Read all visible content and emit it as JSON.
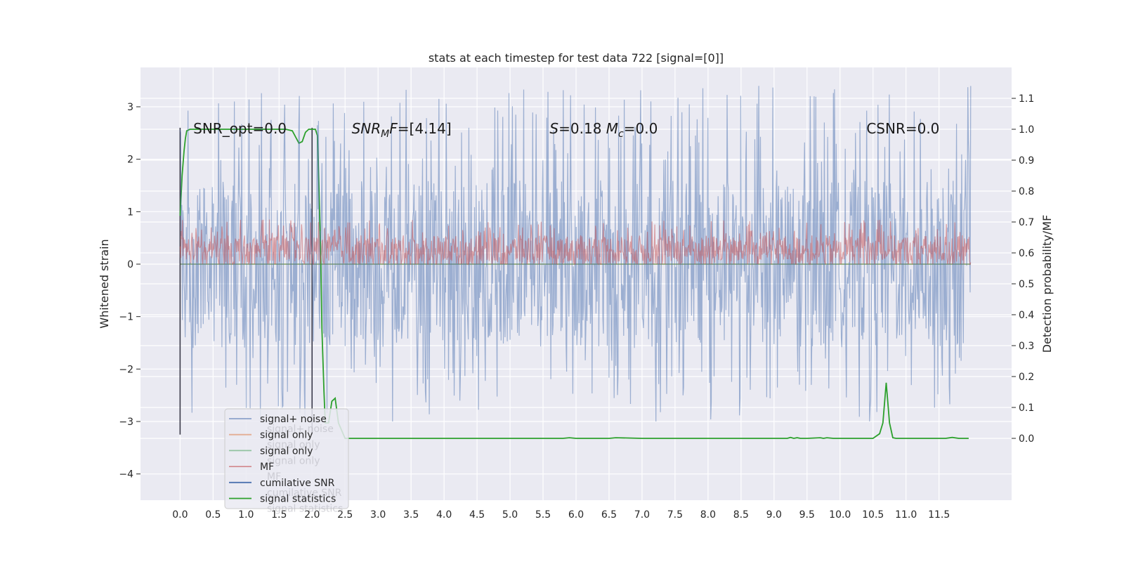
{
  "chart_data": {
    "type": "line",
    "title": "stats at each timestep for test data 722 [signal=[0]]",
    "xlabel": "",
    "ylabel": "Whitened strain",
    "y2label": "Detection probability/MF",
    "xlim": [
      -0.6,
      12.6
    ],
    "ylim": [
      -4.5,
      3.75
    ],
    "y2lim": [
      -0.2,
      1.2
    ],
    "xticks": [
      0.0,
      0.5,
      1.0,
      1.5,
      2.0,
      2.5,
      3.0,
      3.5,
      4.0,
      4.5,
      5.0,
      5.5,
      6.0,
      6.5,
      7.0,
      7.5,
      8.0,
      8.5,
      9.0,
      9.5,
      10.0,
      10.5,
      11.0,
      11.5
    ],
    "xtick_labels": [
      "0.0",
      "0.5",
      "1.0",
      "1.5",
      "2.0",
      "2.5",
      "3.0",
      "3.5",
      "4.0",
      "4.5",
      "5.0",
      "5.5",
      "6.0",
      "6.5",
      "7.0",
      "7.5",
      "8.0",
      "8.5",
      "9.0",
      "9.5",
      "10.0",
      "10.5",
      "11.0",
      "11.5"
    ],
    "yticks": [
      -4,
      -3,
      -2,
      -1,
      0,
      1,
      2,
      3
    ],
    "ytick_labels": [
      "−4",
      "−3",
      "−2",
      "−1",
      "0",
      "1",
      "2",
      "3"
    ],
    "y2ticks": [
      0.0,
      0.1,
      0.2,
      0.3,
      0.4,
      0.5,
      0.6,
      0.7,
      0.8,
      0.9,
      1.0,
      1.1
    ],
    "y2tick_labels": [
      "0.0",
      "0.1",
      "0.2",
      "0.3",
      "0.4",
      "0.5",
      "0.6",
      "0.7",
      "0.8",
      "0.9",
      "1.0",
      "1.1"
    ],
    "grid": true,
    "annotations": [
      {
        "text": "SNR_opt=0.0",
        "x": 0.2,
        "y": 2.6
      },
      {
        "text": "SNR_MF=[4.14]",
        "x": 2.6,
        "y": 2.6
      },
      {
        "text": "S=0.18   M_c=0.0",
        "x": 5.6,
        "y": 2.6
      },
      {
        "text": "CSNR=0.0",
        "x": 10.4,
        "y": 2.6
      }
    ],
    "series": [
      {
        "name": "signal+ noise",
        "color": "#4c72b0",
        "axis": "left",
        "kind": "noise",
        "t_range": [
          0.0,
          11.98
        ],
        "typical_range": [
          -1.6,
          1.6
        ],
        "extreme_range": [
          -3.0,
          3.4
        ]
      },
      {
        "name": "signal only",
        "color": "#dd8452",
        "axis": "left",
        "kind": "flat",
        "value": 0.0
      },
      {
        "name": "signal only",
        "color": "#55a868",
        "axis": "left",
        "kind": "flat",
        "value": 0.0
      },
      {
        "name": "MF",
        "color": "#c44e52",
        "axis": "left",
        "kind": "noise",
        "t_range": [
          0.0,
          11.98
        ],
        "typical_range": [
          0.0,
          0.55
        ],
        "extreme_range": [
          0.0,
          0.85
        ]
      },
      {
        "name": "cumilative SNR",
        "color": "#4c72b0",
        "axis": "left",
        "kind": "markers",
        "x": [
          0.0,
          2.0
        ],
        "y_range": [
          -3.25,
          2.6
        ]
      },
      {
        "name": "signal statistics",
        "color": "#2ca02c",
        "axis": "right",
        "kind": "line",
        "x": [
          0.0,
          0.03,
          0.06,
          0.08,
          0.1,
          0.15,
          0.3,
          0.6,
          1.0,
          1.4,
          1.6,
          1.7,
          1.75,
          1.8,
          1.85,
          1.9,
          1.95,
          2.05,
          2.08,
          2.1,
          2.13,
          2.15,
          2.18,
          2.2,
          2.25,
          2.3,
          2.35,
          2.4,
          2.5,
          3.0,
          4.0,
          5.0,
          5.8,
          5.9,
          6.0,
          6.5,
          6.6,
          7.0,
          8.0,
          9.0,
          9.2,
          9.25,
          9.3,
          9.35,
          9.4,
          9.5,
          9.7,
          9.75,
          9.8,
          9.9,
          10.0,
          10.1,
          10.4,
          10.5,
          10.6,
          10.65,
          10.7,
          10.75,
          10.8,
          10.85,
          11.0,
          11.3,
          11.6,
          11.7,
          11.8,
          11.9,
          11.95
        ],
        "y": [
          0.72,
          0.85,
          0.93,
          0.97,
          0.995,
          1.0,
          1.0,
          1.0,
          1.0,
          1.0,
          1.0,
          0.995,
          0.975,
          0.955,
          0.96,
          0.99,
          1.0,
          1.0,
          0.98,
          0.85,
          0.6,
          0.35,
          0.15,
          0.05,
          0.05,
          0.12,
          0.13,
          0.05,
          0.0,
          0.0,
          0.0,
          0.0,
          0.0,
          0.002,
          0.0,
          0.0,
          0.002,
          0.0,
          0.0,
          0.0,
          0.0,
          0.003,
          0.0,
          0.002,
          0.0,
          0.0,
          0.002,
          0.0,
          0.002,
          0.0,
          0.0,
          0.0,
          0.0,
          0.0,
          0.015,
          0.05,
          0.18,
          0.05,
          0.002,
          0.0,
          0.0,
          0.0,
          0.0,
          0.003,
          0.0,
          0.0,
          0.0
        ]
      }
    ],
    "legend": {
      "placement": "lower-left",
      "entries": [
        {
          "label": "signal+ noise",
          "color": "#4c72b0"
        },
        {
          "label": "signal only",
          "color": "#dd8452"
        },
        {
          "label": "signal only",
          "color": "#55a868"
        },
        {
          "label": "MF",
          "color": "#c44e52"
        },
        {
          "label": "cumilative SNR",
          "color": "#4c72b0"
        },
        {
          "label": "signal statistics",
          "color": "#2ca02c"
        }
      ],
      "ghost_entries": [
        "signal+ noise",
        "signal only",
        "signal only",
        "MF",
        "cumilative SNR",
        "signal statistics"
      ]
    }
  }
}
